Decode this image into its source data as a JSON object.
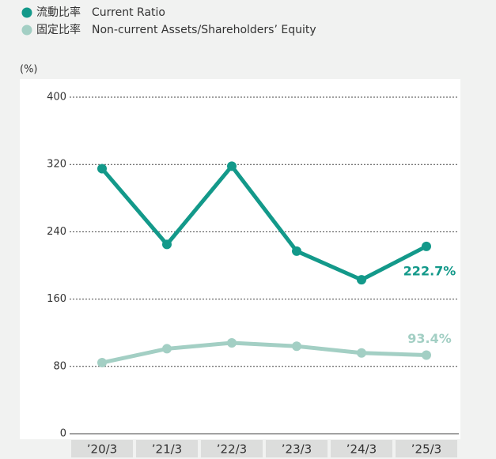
{
  "chart_data": {
    "type": "line",
    "y_label": "(%)",
    "categories": [
      "’20/3",
      "’21/3",
      "’22/3",
      "’23/3",
      "’24/3",
      "’25/3"
    ],
    "series": [
      {
        "name": "流動比率　Current Ratio",
        "color": "#13998a",
        "values": [
          315,
          225,
          318,
          217,
          183,
          222.7
        ],
        "value_labels": [
          null,
          null,
          null,
          null,
          null,
          "222.7%"
        ]
      },
      {
        "name": "固定比率　Non-current Assets/Shareholders’ Equity",
        "color": "#a3cfc4",
        "values": [
          84.5,
          101,
          108,
          104,
          96,
          93.4
        ],
        "value_labels": [
          null,
          null,
          null,
          null,
          null,
          "93.4%"
        ]
      }
    ],
    "ylim": [
      0,
      400
    ],
    "yticks": [
      0,
      80,
      160,
      240,
      320,
      400
    ],
    "grid": true,
    "legend": "top-left"
  }
}
